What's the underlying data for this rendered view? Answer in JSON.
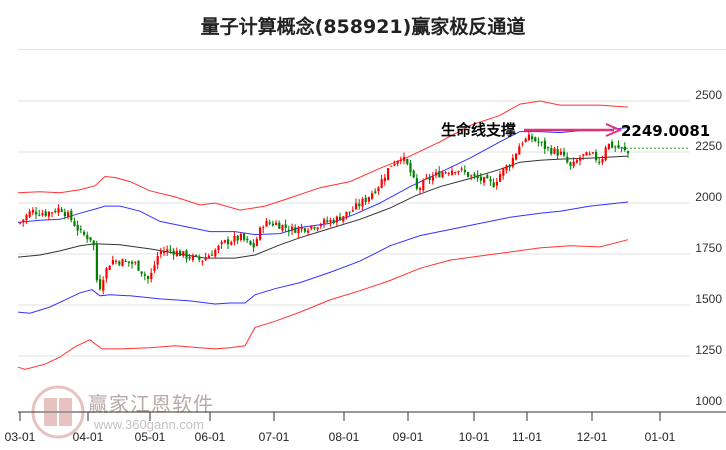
{
  "title": "量子计算概念(858921)赢家极反通道",
  "watermark": {
    "brand": "赢家江恩软件",
    "url": "www.360gann.com",
    "logo_chars": [
      "江",
      "赢",
      "恩",
      "家"
    ]
  },
  "annotation": {
    "label": "生命线支撑",
    "value": "2249.0081"
  },
  "colors": {
    "up": "#ff0000",
    "down": "#008000",
    "outer_band": "#ff3333",
    "inner_band": "#3333ff",
    "lifeline": "#333333",
    "arrow": "#e0317a",
    "support": "#2e9e2e"
  },
  "chart_data": {
    "type": "candlestick",
    "title": "量子计算概念(858921)赢家极反通道",
    "xlabel": "",
    "ylabel": "",
    "ylim": [
      1000,
      2600
    ],
    "yticks": [
      2500,
      2250,
      2000,
      1750,
      1500,
      1250,
      1000
    ],
    "xticks": [
      "03-01",
      "04-01",
      "05-01",
      "06-01",
      "07-01",
      "08-01",
      "09-01",
      "10-01",
      "11-01",
      "12-01",
      "01-01"
    ],
    "grid": true,
    "legend": "none",
    "support_level": 2249.0081,
    "series": [
      {
        "name": "upper_outer_band",
        "color": "red",
        "points": [
          [
            18,
            2050
          ],
          [
            40,
            2055
          ],
          [
            60,
            2050
          ],
          [
            80,
            2065
          ],
          [
            95,
            2085
          ],
          [
            105,
            2130
          ],
          [
            115,
            2125
          ],
          [
            130,
            2105
          ],
          [
            150,
            2060
          ],
          [
            175,
            2030
          ],
          [
            200,
            1990
          ],
          [
            215,
            2000
          ],
          [
            240,
            1965
          ],
          [
            265,
            1985
          ],
          [
            290,
            2025
          ],
          [
            320,
            2075
          ],
          [
            350,
            2105
          ],
          [
            380,
            2170
          ],
          [
            410,
            2230
          ],
          [
            440,
            2300
          ],
          [
            470,
            2380
          ],
          [
            500,
            2430
          ],
          [
            520,
            2485
          ],
          [
            540,
            2500
          ],
          [
            560,
            2480
          ],
          [
            580,
            2480
          ],
          [
            600,
            2480
          ],
          [
            628,
            2470
          ]
        ]
      },
      {
        "name": "upper_inner_band",
        "color": "blue",
        "points": [
          [
            18,
            1905
          ],
          [
            40,
            1915
          ],
          [
            60,
            1920
          ],
          [
            80,
            1950
          ],
          [
            95,
            1970
          ],
          [
            105,
            1985
          ],
          [
            120,
            1985
          ],
          [
            140,
            1960
          ],
          [
            160,
            1910
          ],
          [
            190,
            1880
          ],
          [
            210,
            1860
          ],
          [
            235,
            1860
          ],
          [
            255,
            1845
          ],
          [
            280,
            1850
          ],
          [
            300,
            1880
          ],
          [
            330,
            1900
          ],
          [
            355,
            1945
          ],
          [
            380,
            2000
          ],
          [
            410,
            2080
          ],
          [
            440,
            2150
          ],
          [
            470,
            2220
          ],
          [
            500,
            2300
          ],
          [
            520,
            2350
          ],
          [
            540,
            2350
          ],
          [
            560,
            2345
          ],
          [
            580,
            2355
          ],
          [
            600,
            2355
          ],
          [
            628,
            2370
          ]
        ]
      },
      {
        "name": "lifeline",
        "color": "black",
        "points": [
          [
            18,
            1735
          ],
          [
            40,
            1745
          ],
          [
            60,
            1765
          ],
          [
            80,
            1790
          ],
          [
            95,
            1800
          ],
          [
            120,
            1795
          ],
          [
            150,
            1775
          ],
          [
            180,
            1750
          ],
          [
            205,
            1730
          ],
          [
            235,
            1730
          ],
          [
            255,
            1745
          ],
          [
            280,
            1795
          ],
          [
            300,
            1830
          ],
          [
            330,
            1875
          ],
          [
            360,
            1920
          ],
          [
            390,
            1975
          ],
          [
            415,
            2035
          ],
          [
            440,
            2080
          ],
          [
            470,
            2120
          ],
          [
            500,
            2165
          ],
          [
            520,
            2200
          ],
          [
            540,
            2210
          ],
          [
            560,
            2215
          ],
          [
            590,
            2220
          ],
          [
            628,
            2230
          ]
        ]
      },
      {
        "name": "lower_inner_band",
        "color": "blue",
        "points": [
          [
            18,
            1465
          ],
          [
            30,
            1460
          ],
          [
            50,
            1490
          ],
          [
            65,
            1525
          ],
          [
            80,
            1560
          ],
          [
            92,
            1575
          ],
          [
            100,
            1545
          ],
          [
            110,
            1550
          ],
          [
            130,
            1545
          ],
          [
            160,
            1530
          ],
          [
            190,
            1520
          ],
          [
            215,
            1505
          ],
          [
            230,
            1510
          ],
          [
            245,
            1510
          ],
          [
            255,
            1550
          ],
          [
            275,
            1580
          ],
          [
            300,
            1610
          ],
          [
            330,
            1660
          ],
          [
            360,
            1715
          ],
          [
            390,
            1790
          ],
          [
            420,
            1840
          ],
          [
            450,
            1870
          ],
          [
            480,
            1900
          ],
          [
            510,
            1930
          ],
          [
            540,
            1950
          ],
          [
            560,
            1960
          ],
          [
            590,
            1985
          ],
          [
            628,
            2005
          ]
        ]
      },
      {
        "name": "lower_outer_band",
        "color": "red",
        "points": [
          [
            18,
            1195
          ],
          [
            25,
            1185
          ],
          [
            45,
            1210
          ],
          [
            60,
            1245
          ],
          [
            75,
            1295
          ],
          [
            90,
            1330
          ],
          [
            95,
            1310
          ],
          [
            102,
            1285
          ],
          [
            120,
            1285
          ],
          [
            150,
            1290
          ],
          [
            175,
            1300
          ],
          [
            200,
            1290
          ],
          [
            215,
            1285
          ],
          [
            230,
            1290
          ],
          [
            245,
            1300
          ],
          [
            255,
            1390
          ],
          [
            275,
            1420
          ],
          [
            300,
            1465
          ],
          [
            330,
            1525
          ],
          [
            360,
            1570
          ],
          [
            390,
            1620
          ],
          [
            420,
            1680
          ],
          [
            450,
            1720
          ],
          [
            480,
            1740
          ],
          [
            510,
            1760
          ],
          [
            540,
            1780
          ],
          [
            570,
            1790
          ],
          [
            600,
            1785
          ],
          [
            628,
            1820
          ]
        ]
      }
    ]
  }
}
